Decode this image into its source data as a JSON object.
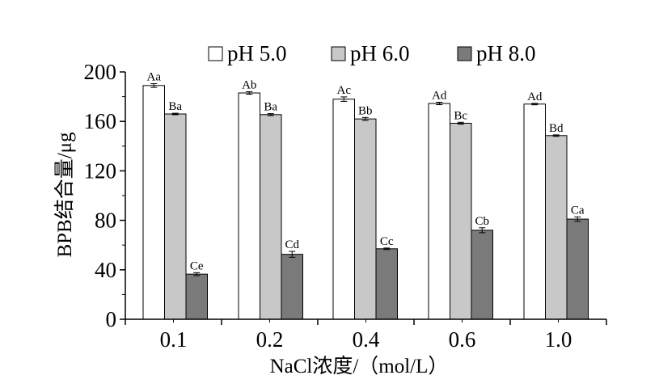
{
  "chart_data": {
    "type": "bar",
    "title": "",
    "xlabel": "NaCl浓度/（mol/L）",
    "ylabel": "BPB结合量/μg",
    "ylim": [
      0,
      200
    ],
    "yticks": [
      "0",
      "40",
      "80",
      "120",
      "160",
      "200"
    ],
    "categories": [
      "0.1",
      "0.2",
      "0.4",
      "0.6",
      "1.0"
    ],
    "legend_position": "top",
    "grid": false,
    "series": [
      {
        "name": "pH 5.0",
        "color": "#ffffff",
        "values": [
          189,
          183,
          178,
          174.5,
          174
        ],
        "errors": [
          1.5,
          1,
          1.8,
          1,
          0.6
        ],
        "labels": [
          "Aa",
          "Ab",
          "Ac",
          "Ad",
          "Ad"
        ]
      },
      {
        "name": "pH 6.0",
        "color": "#c8c8c8",
        "values": [
          166,
          165.5,
          162,
          158.5,
          148.5
        ],
        "errors": [
          0.6,
          0.8,
          1.2,
          0.8,
          0.6
        ],
        "labels": [
          "Ba",
          "Ba",
          "Bb",
          "Bc",
          "Bd"
        ]
      },
      {
        "name": "pH 8.0",
        "color": "#7a7a7a",
        "values": [
          36.5,
          52.5,
          57,
          72,
          81
        ],
        "errors": [
          1.2,
          2.4,
          0.6,
          2,
          1.8
        ],
        "labels": [
          "Ce",
          "Cd",
          "Cc",
          "Cb",
          "Ca"
        ]
      }
    ]
  }
}
